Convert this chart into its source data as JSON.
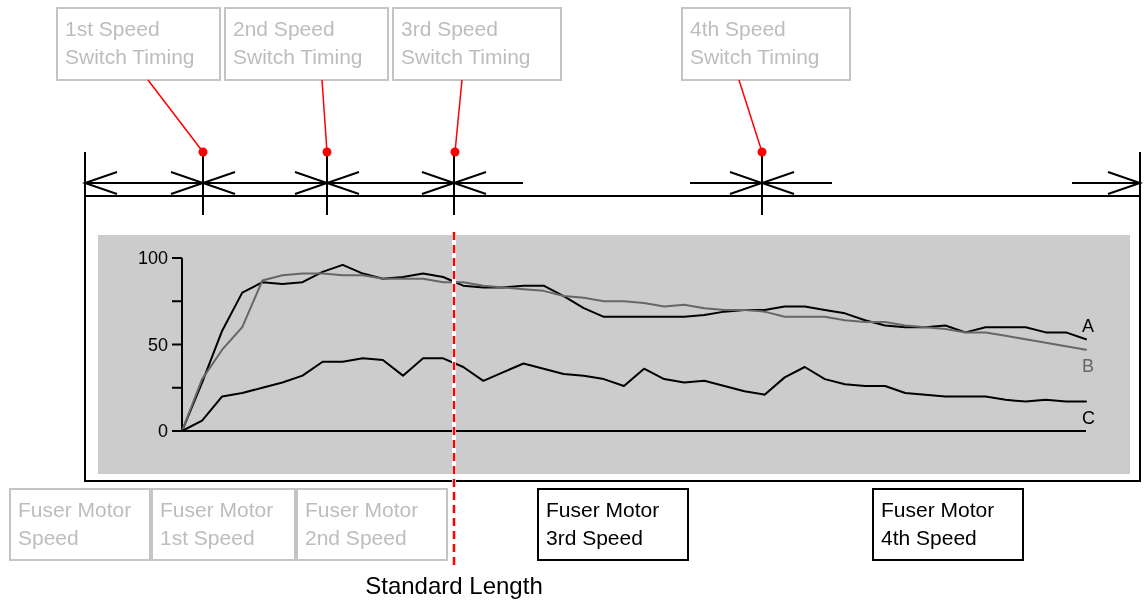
{
  "chart_data": {
    "type": "line",
    "categories": [
      null,
      null,
      null,
      null,
      null,
      null,
      null,
      null,
      null,
      null,
      null,
      null,
      null,
      null,
      null,
      null,
      null,
      null,
      null,
      null,
      null,
      null,
      null,
      null,
      null,
      null,
      null,
      null,
      null,
      null,
      null,
      null,
      null,
      null,
      null,
      null,
      null,
      null,
      null,
      null,
      null,
      null,
      null,
      null,
      null,
      null
    ],
    "series": [
      {
        "name": "A",
        "color": "#000000",
        "values": [
          0,
          28,
          58,
          80,
          86,
          85,
          86,
          92,
          96,
          91,
          88,
          89,
          91,
          89,
          84,
          83,
          83,
          84,
          84,
          78,
          71,
          66,
          66,
          66,
          66,
          66,
          67,
          69,
          70,
          70,
          72,
          72,
          70,
          68,
          64,
          61,
          60,
          60,
          61,
          57,
          60,
          60,
          60,
          57,
          57,
          53
        ]
      },
      {
        "name": "B",
        "color": "#666666",
        "values": [
          0,
          30,
          47,
          60,
          87,
          90,
          91,
          91,
          90,
          90,
          88,
          88,
          88,
          86,
          86,
          84,
          83,
          82,
          81,
          78,
          77,
          75,
          75,
          74,
          72,
          73,
          71,
          70,
          70,
          69,
          66,
          66,
          66,
          64,
          63,
          63,
          61,
          60,
          59,
          57,
          57,
          55,
          53,
          51,
          49,
          47
        ]
      },
      {
        "name": "C",
        "color": "#000000",
        "values": [
          0,
          6,
          20,
          22,
          25,
          28,
          32,
          40,
          40,
          42,
          41,
          32,
          42,
          42,
          37,
          29,
          34,
          39,
          36,
          33,
          32,
          30,
          26,
          36,
          30,
          28,
          29,
          26,
          23,
          21,
          31,
          37,
          30,
          27,
          26,
          26,
          22,
          21,
          20,
          20,
          20,
          18,
          17,
          18,
          17,
          17
        ]
      }
    ],
    "ylim": [
      0,
      100
    ],
    "yticks": [
      0,
      {
        "value": 25,
        "label": null
      },
      50,
      {
        "value": 75,
        "label": null
      },
      100
    ],
    "tick_labels": "y",
    "annotations": [
      "1st Speed\nSwitch Timing",
      "2nd Speed\nSwitch Timing",
      "3rd Speed\nSwitch Timing",
      "4th Speed\nSwitch Timing",
      "Fuser Motor\nSpeed",
      "Fuser Motor\n1st Speed",
      "Fuser Motor\n2nd Speed",
      "Fuser Motor\n3rd Speed",
      "Fuser Motor\n4th Speed",
      "Standard Length"
    ]
  }
}
